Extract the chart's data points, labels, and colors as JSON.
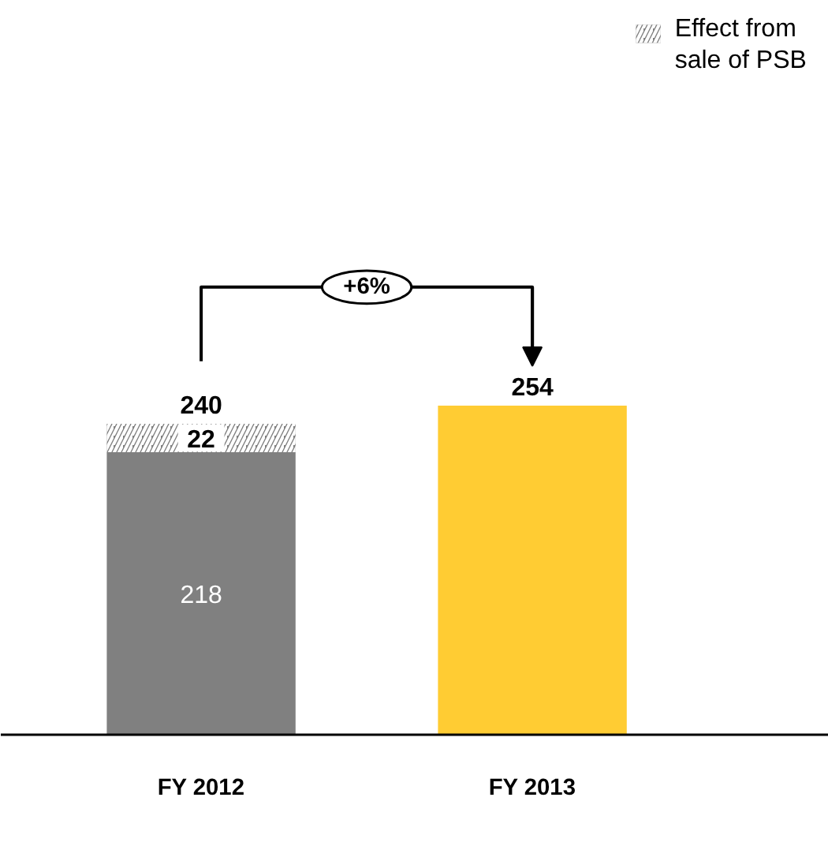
{
  "chart_data": {
    "type": "bar",
    "stacked": true,
    "categories": [
      "FY 2012",
      "FY 2013"
    ],
    "series": [
      {
        "colors": [
          "#808080",
          "#ffcc33"
        ],
        "values": [
          218,
          254
        ],
        "value_labels": [
          "218",
          null
        ]
      },
      {
        "name": "Effect from sale of PSB",
        "color": "#808080",
        "values": [
          22,
          null
        ],
        "value_labels": [
          "22",
          null
        ]
      }
    ],
    "totals": [
      "240",
      "254"
    ],
    "annotations": [
      "+6%"
    ],
    "legend": "top right"
  }
}
